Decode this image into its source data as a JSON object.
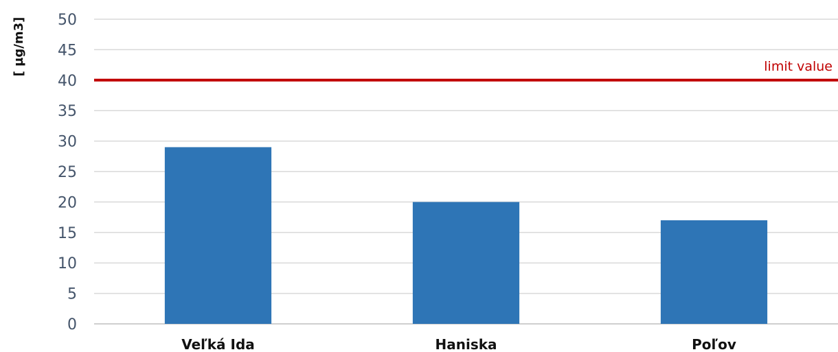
{
  "chart_data": {
    "type": "bar",
    "title": "",
    "xlabel": "",
    "ylabel": "[ µg/m3]",
    "categories": [
      "Veľká Ida",
      "Haniska",
      "Poľov"
    ],
    "values": [
      29,
      20,
      17
    ],
    "ylim": [
      0,
      50
    ],
    "yticks": [
      0,
      5,
      10,
      15,
      20,
      25,
      30,
      35,
      40,
      45,
      50
    ],
    "grid": true,
    "legend": "none",
    "bar_color": "#2e75b6",
    "limit_line": {
      "value": 40,
      "label": "limit value",
      "color": "#c00000"
    }
  }
}
